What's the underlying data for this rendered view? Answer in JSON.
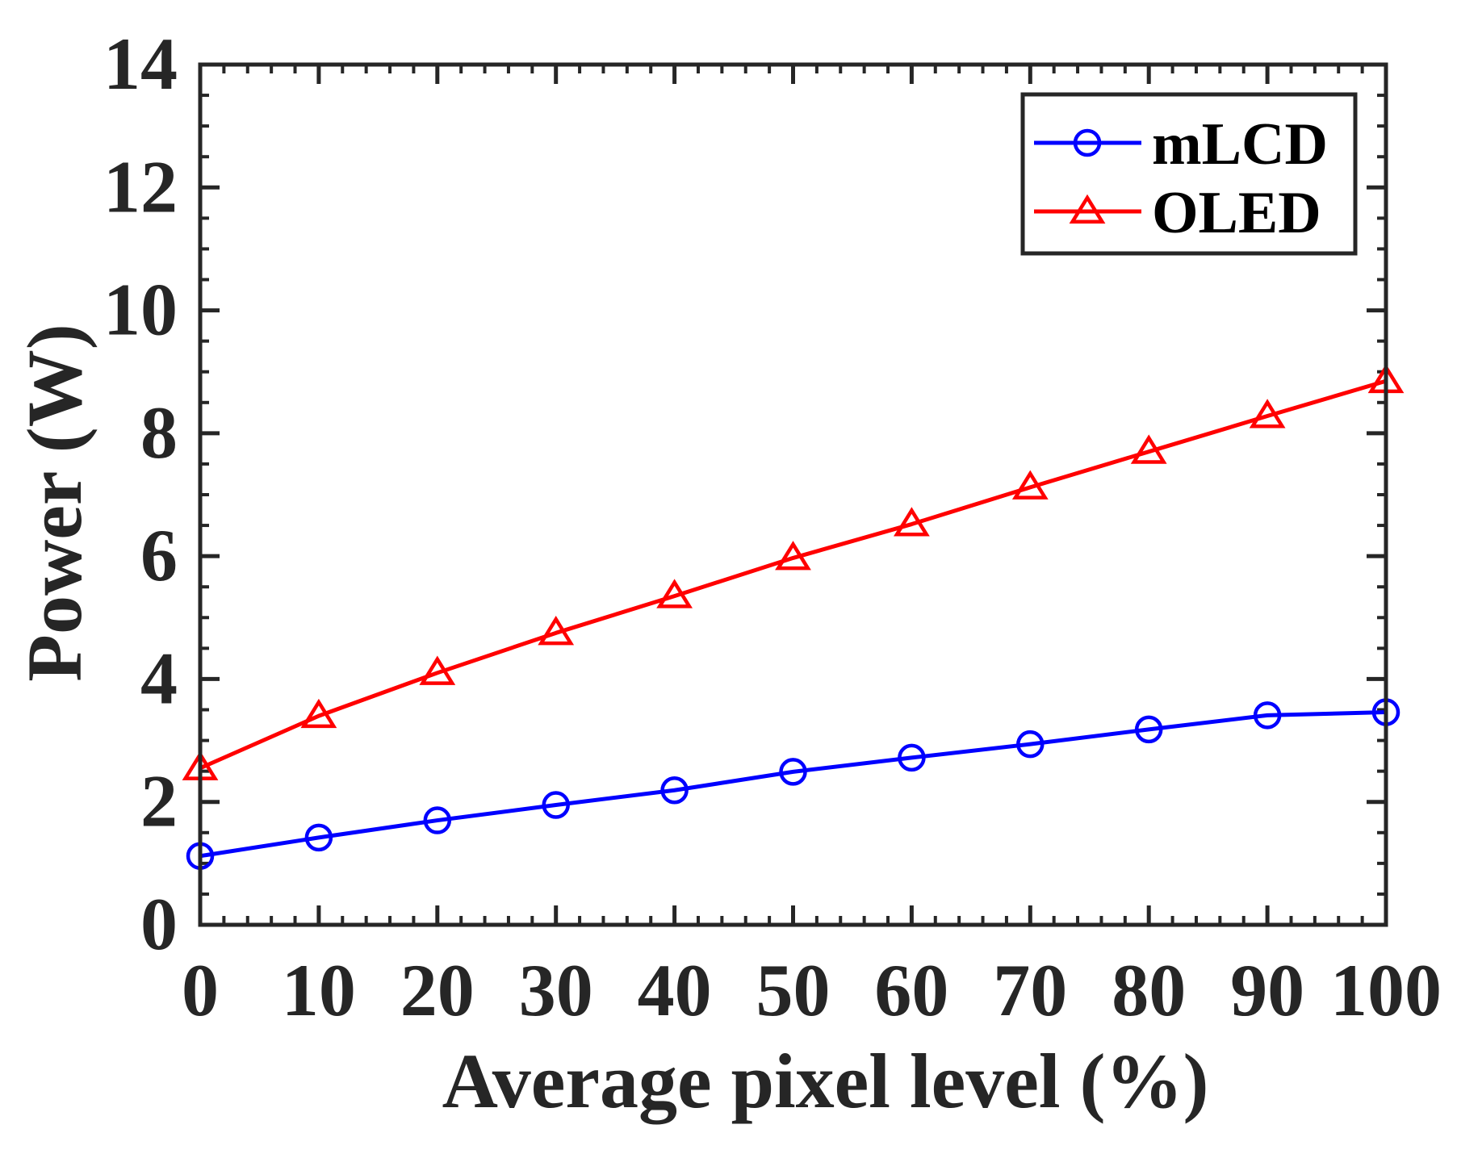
{
  "chart_data": {
    "type": "line",
    "xlabel": "Average pixel level (%)",
    "ylabel": "Power (W)",
    "xlim": [
      0,
      100
    ],
    "ylim": [
      0,
      14
    ],
    "x_ticks": [
      0,
      10,
      20,
      30,
      40,
      50,
      60,
      70,
      80,
      90,
      100
    ],
    "y_ticks": [
      0,
      2,
      4,
      6,
      8,
      10,
      12,
      14
    ],
    "x_tick_labels": [
      "0",
      "10",
      "20",
      "30",
      "40",
      "50",
      "60",
      "70",
      "80",
      "90",
      "100"
    ],
    "y_tick_labels": [
      "0",
      "2",
      "4",
      "6",
      "8",
      "10",
      "12",
      "14"
    ],
    "x": [
      0,
      10,
      20,
      30,
      40,
      50,
      60,
      70,
      80,
      90,
      100
    ],
    "series": [
      {
        "name": "mLCD",
        "marker": "circle",
        "color": "#0000ff",
        "values": [
          1.12,
          1.42,
          1.7,
          1.95,
          2.19,
          2.49,
          2.72,
          2.94,
          3.18,
          3.41,
          3.46
        ]
      },
      {
        "name": "OLED",
        "marker": "triangle",
        "color": "#ff0000",
        "values": [
          2.55,
          3.4,
          4.1,
          4.75,
          5.35,
          5.97,
          6.52,
          7.12,
          7.7,
          8.28,
          8.85
        ]
      }
    ],
    "grid": false,
    "box": true,
    "minor_ticks": true,
    "legend": {
      "position": "top-right"
    }
  }
}
